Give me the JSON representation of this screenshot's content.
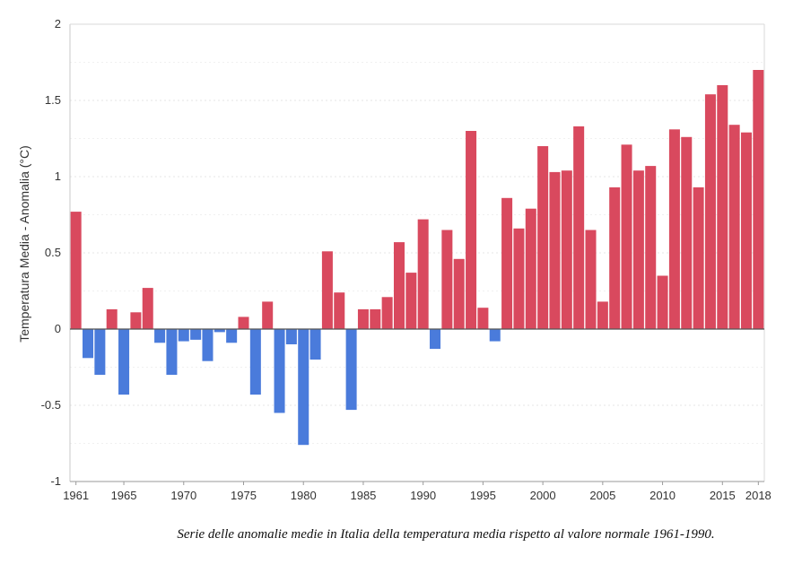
{
  "chart_data": {
    "type": "bar",
    "ylabel": "Temperatura Media - Anomalia (°C)",
    "ylim": [
      -1,
      2
    ],
    "yticks": [
      -1,
      -0.5,
      0,
      0.5,
      1,
      1.5,
      2
    ],
    "ytick_labels": [
      "-1",
      "-0.5",
      "0",
      "0.5",
      "1",
      "1.5",
      "2"
    ],
    "xtick_labels": [
      "1961",
      "1965",
      "1970",
      "1975",
      "1980",
      "1985",
      "1990",
      "1995",
      "2000",
      "2005",
      "2010",
      "2015",
      "2018"
    ],
    "grid": true,
    "colors": {
      "positive": "#d9495e",
      "negative": "#4a7bdb",
      "zero_line": "#555555",
      "grid": "#e6e6e6"
    },
    "years": [
      1961,
      1962,
      1963,
      1964,
      1965,
      1966,
      1967,
      1968,
      1969,
      1970,
      1971,
      1972,
      1973,
      1974,
      1975,
      1976,
      1977,
      1978,
      1979,
      1980,
      1981,
      1982,
      1983,
      1984,
      1985,
      1986,
      1987,
      1988,
      1989,
      1990,
      1991,
      1992,
      1993,
      1994,
      1995,
      1996,
      1997,
      1998,
      1999,
      2000,
      2001,
      2002,
      2003,
      2004,
      2005,
      2006,
      2007,
      2008,
      2009,
      2010,
      2011,
      2012,
      2013,
      2014,
      2015,
      2016,
      2017,
      2018
    ],
    "values": [
      0.77,
      -0.19,
      -0.3,
      0.13,
      -0.43,
      0.11,
      0.27,
      -0.09,
      -0.3,
      -0.08,
      -0.07,
      -0.21,
      -0.02,
      -0.09,
      0.08,
      -0.43,
      0.18,
      -0.55,
      -0.1,
      -0.76,
      -0.2,
      0.51,
      0.24,
      -0.53,
      0.13,
      0.13,
      0.21,
      0.57,
      0.37,
      0.72,
      -0.13,
      0.65,
      0.46,
      1.3,
      0.14,
      -0.08,
      0.86,
      0.66,
      0.79,
      1.2,
      1.03,
      1.04,
      1.33,
      0.65,
      0.18,
      0.93,
      1.21,
      1.04,
      1.07,
      0.35,
      1.31,
      1.26,
      0.93,
      1.54,
      1.6,
      1.34,
      1.29,
      1.7
    ]
  },
  "caption": "Serie delle anomalie medie in Italia della temperatura media rispetto al valore normale 1961-1990."
}
